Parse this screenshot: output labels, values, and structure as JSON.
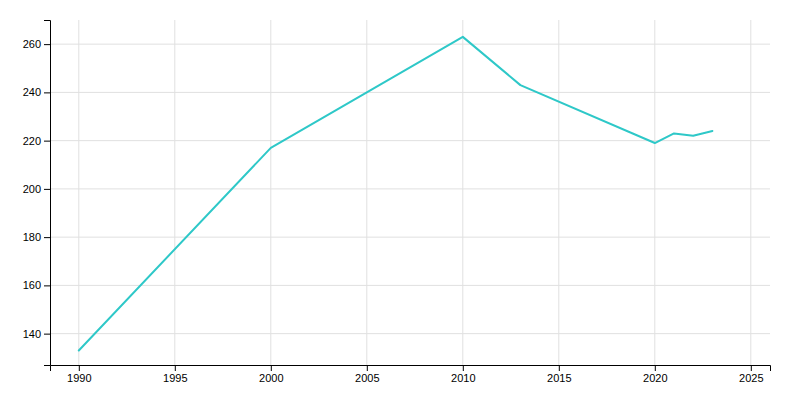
{
  "chart_data": {
    "type": "line",
    "x": [
      1990,
      2000,
      2010,
      2013,
      2020,
      2021,
      2022,
      2023
    ],
    "values": [
      133,
      217,
      263,
      243,
      219,
      223,
      222,
      224
    ],
    "color": "#2ec8c8",
    "xlim": [
      1988.5,
      2026
    ],
    "ylim": [
      127,
      270
    ],
    "xticks": [
      1990,
      1995,
      2000,
      2005,
      2010,
      2015,
      2020,
      2025
    ],
    "yticks": [
      140,
      160,
      180,
      200,
      220,
      240,
      260
    ],
    "grid": true
  }
}
